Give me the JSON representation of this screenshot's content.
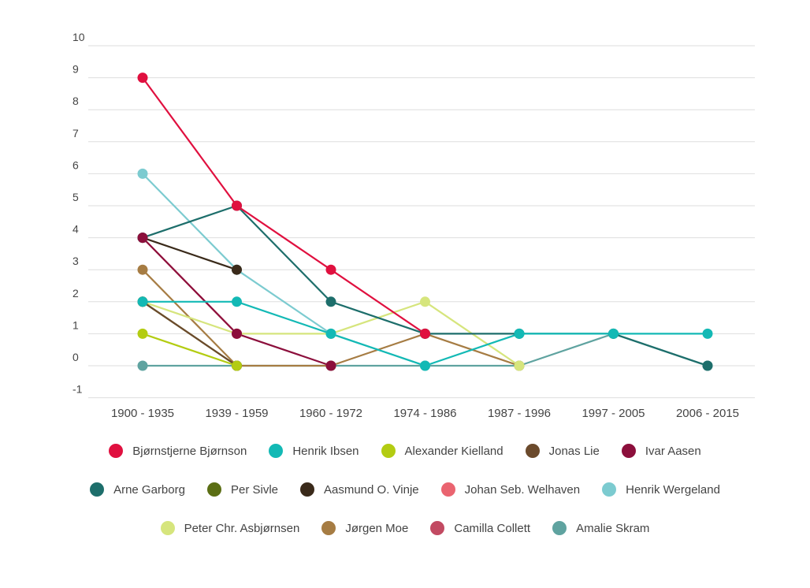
{
  "chart_data": {
    "type": "line",
    "title": "",
    "xlabel": "",
    "ylabel": "",
    "categories": [
      "1900 - 1935",
      "1939 - 1959",
      "1960 - 1972",
      "1974 - 1986",
      "1987 - 1996",
      "1997 - 2005",
      "2006 - 2015"
    ],
    "ylim": [
      -1,
      10
    ],
    "yticks": [
      "10",
      "9",
      "8",
      "7",
      "6",
      "5",
      "4",
      "3",
      "2",
      "1",
      "0",
      "-1"
    ],
    "grid": true,
    "legend_position": "bottom",
    "series": [
      {
        "name": "Bjørnstjerne Bjørnson",
        "color": "#e0103f",
        "values": [
          9,
          5,
          3,
          1,
          null,
          null,
          null
        ]
      },
      {
        "name": "Henrik Ibsen",
        "color": "#13b9b5",
        "values": [
          2,
          2,
          1,
          0,
          1,
          1,
          1
        ]
      },
      {
        "name": "Alexander Kielland",
        "color": "#b3cc12",
        "values": [
          1,
          0,
          null,
          null,
          null,
          null,
          null
        ]
      },
      {
        "name": "Jonas Lie",
        "color": "#6b4a2c",
        "values": [
          2,
          0,
          null,
          null,
          null,
          null,
          null
        ]
      },
      {
        "name": "Ivar Aasen",
        "color": "#8c0f3c",
        "values": [
          4,
          1,
          0,
          null,
          null,
          null,
          null
        ]
      },
      {
        "name": "Arne Garborg",
        "color": "#1d6e6b",
        "values": [
          4,
          5,
          2,
          1,
          1,
          1,
          0
        ]
      },
      {
        "name": "Per Sivle",
        "color": "#5b6e14",
        "values": [
          2,
          0,
          null,
          null,
          null,
          null,
          null
        ]
      },
      {
        "name": "Aasmund O. Vinje",
        "color": "#3a2a1a",
        "values": [
          4,
          3,
          null,
          null,
          null,
          null,
          null
        ]
      },
      {
        "name": "Johan Seb. Welhaven",
        "color": "#ea6470",
        "values": [
          4,
          1,
          null,
          null,
          null,
          null,
          null
        ]
      },
      {
        "name": "Henrik Wergeland",
        "color": "#7ccbd0",
        "values": [
          6,
          3,
          1,
          0,
          null,
          null,
          null
        ]
      },
      {
        "name": "Peter Chr. Asbjørnsen",
        "color": "#d6e57d",
        "values": [
          2,
          1,
          1,
          2,
          0,
          null,
          null
        ]
      },
      {
        "name": "Jørgen Moe",
        "color": "#a67c43",
        "values": [
          3,
          0,
          0,
          1,
          0,
          null,
          null
        ]
      },
      {
        "name": "Camilla Collett",
        "color": "#c24a62",
        "values": [
          null,
          null,
          null,
          null,
          null,
          null,
          null
        ]
      },
      {
        "name": "Amalie Skram",
        "color": "#5fa3a0",
        "values": [
          0,
          0,
          0,
          0,
          0,
          1,
          0
        ]
      }
    ]
  },
  "legend_rows": [
    [
      {
        "label": "Bjørnstjerne Bjørnson",
        "color": "#e0103f"
      },
      {
        "label": "Henrik Ibsen",
        "color": "#13b9b5"
      },
      {
        "label": "Alexander Kielland",
        "color": "#b3cc12"
      },
      {
        "label": "Jonas Lie",
        "color": "#6b4a2c"
      },
      {
        "label": "Ivar Aasen",
        "color": "#8c0f3c"
      }
    ],
    [
      {
        "label": "Arne Garborg",
        "color": "#1d6e6b"
      },
      {
        "label": "Per Sivle",
        "color": "#5b6e14"
      },
      {
        "label": "Aasmund O. Vinje",
        "color": "#3a2a1a"
      },
      {
        "label": "Johan Seb. Welhaven",
        "color": "#ea6470"
      },
      {
        "label": "Henrik Wergeland",
        "color": "#7ccbd0"
      }
    ],
    [
      {
        "label": "Peter Chr. Asbjørnsen",
        "color": "#d6e57d"
      },
      {
        "label": "Jørgen Moe",
        "color": "#a67c43"
      },
      {
        "label": "Camilla Collett",
        "color": "#c24a62"
      },
      {
        "label": "Amalie Skram",
        "color": "#5fa3a0"
      }
    ]
  ]
}
